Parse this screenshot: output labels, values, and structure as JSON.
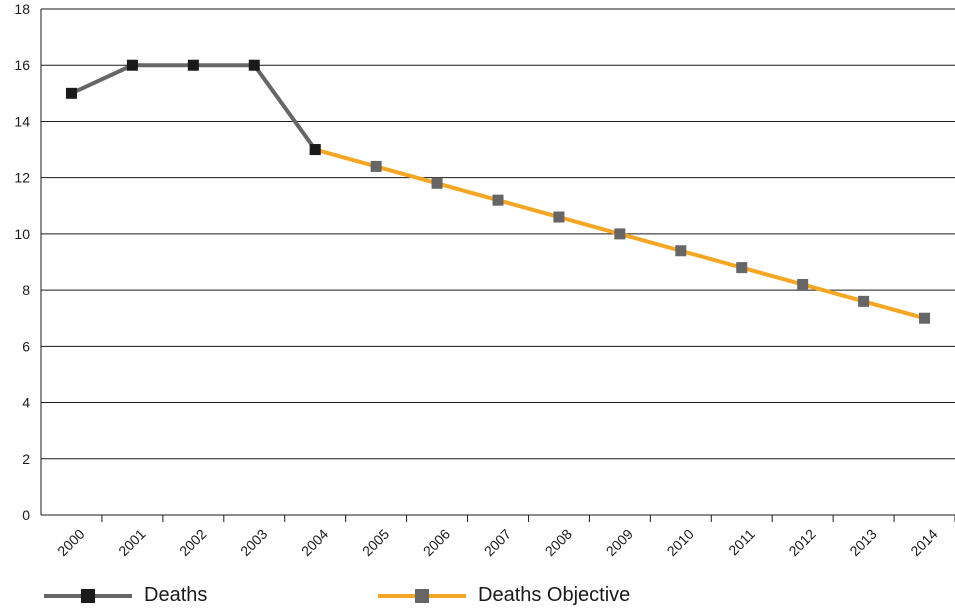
{
  "chart_data": {
    "type": "line",
    "x": [
      "2000",
      "2001",
      "2002",
      "2003",
      "2004",
      "2005",
      "2006",
      "2007",
      "2008",
      "2009",
      "2010",
      "2011",
      "2012",
      "2013",
      "2014"
    ],
    "series": [
      {
        "name": "Deaths",
        "color": "#666666",
        "marker_color": "#1a1a1a",
        "values": [
          15,
          16,
          16,
          16,
          13,
          null,
          null,
          null,
          null,
          null,
          null,
          null,
          null,
          null,
          null
        ]
      },
      {
        "name": "Deaths Objective",
        "color": "#f5a623",
        "marker_color": "#666666",
        "values": [
          null,
          null,
          null,
          null,
          13,
          12.4,
          11.8,
          11.2,
          10.6,
          10.0,
          9.4,
          8.8,
          8.2,
          7.6,
          7.0
        ]
      }
    ],
    "yticks": [
      "0",
      "2",
      "4",
      "6",
      "8",
      "10",
      "12",
      "14",
      "16",
      "18"
    ],
    "ylim": [
      0,
      18
    ],
    "grid": "horizontal",
    "legend_position": "bottom"
  }
}
